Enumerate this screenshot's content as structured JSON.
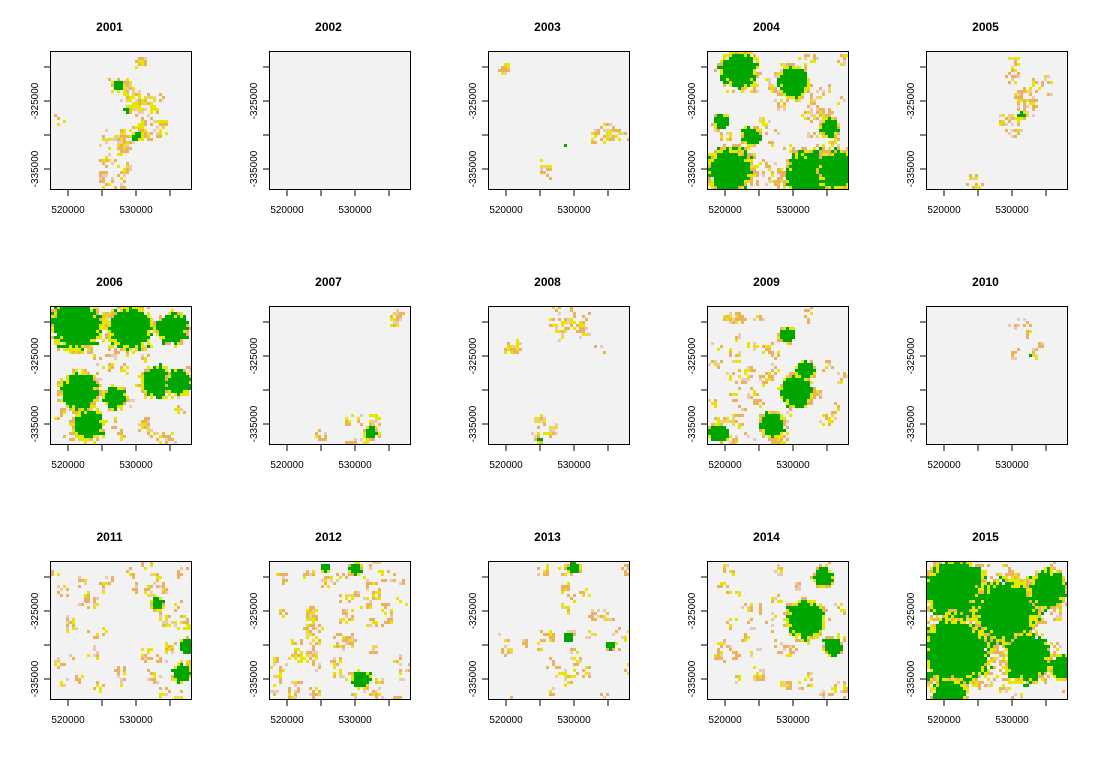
{
  "chart_data": [
    {
      "type": "heatmap",
      "title": "2001",
      "xticks": [
        "520000",
        "530000"
      ],
      "yticks": [
        "-325000",
        "-335000"
      ],
      "patches": [
        {
          "x": 0.48,
          "y": 0.24,
          "r": 0.035,
          "fill": "g"
        },
        {
          "x": 0.6,
          "y": 0.6,
          "r": 0.03,
          "fill": "g"
        },
        {
          "x": 0.53,
          "y": 0.42,
          "r": 0.02,
          "fill": "g"
        }
      ],
      "scatter": [
        [
          0.42,
          0.2,
          0.6,
          0.33,
          14
        ],
        [
          0.55,
          0.3,
          0.8,
          0.6,
          22
        ],
        [
          0.35,
          0.6,
          0.55,
          0.95,
          20
        ],
        [
          0.62,
          0.05,
          0.68,
          0.1,
          2
        ],
        [
          0.05,
          0.45,
          0.07,
          0.48,
          1
        ]
      ]
    },
    {
      "type": "heatmap",
      "title": "2002",
      "xticks": [
        "520000",
        "530000"
      ],
      "yticks": [
        "-325000",
        "-335000"
      ],
      "patches": [],
      "scatter": []
    },
    {
      "type": "heatmap",
      "title": "2003",
      "xticks": [
        "520000",
        "530000"
      ],
      "yticks": [
        "-325000",
        "-335000"
      ],
      "patches": [
        {
          "x": 0.53,
          "y": 0.66,
          "r": 0.015,
          "fill": "g"
        }
      ],
      "scatter": [
        [
          0.1,
          0.1,
          0.13,
          0.13,
          2
        ],
        [
          0.75,
          0.55,
          0.95,
          0.62,
          8
        ],
        [
          0.38,
          0.8,
          0.42,
          0.95,
          3
        ]
      ]
    },
    {
      "type": "heatmap",
      "title": "2004",
      "xticks": [
        "520000",
        "530000"
      ],
      "yticks": [
        "-325000",
        "-335000"
      ],
      "patches": [
        {
          "x": 0.22,
          "y": 0.12,
          "r": 0.12,
          "fill": "g"
        },
        {
          "x": 0.6,
          "y": 0.22,
          "r": 0.1,
          "fill": "g"
        },
        {
          "x": 0.15,
          "y": 0.85,
          "r": 0.14,
          "fill": "g"
        },
        {
          "x": 0.72,
          "y": 0.88,
          "r": 0.16,
          "fill": "g"
        },
        {
          "x": 0.92,
          "y": 0.85,
          "r": 0.12,
          "fill": "g"
        },
        {
          "x": 0.85,
          "y": 0.55,
          "r": 0.06,
          "fill": "g"
        },
        {
          "x": 0.3,
          "y": 0.6,
          "r": 0.06,
          "fill": "g"
        },
        {
          "x": 0.1,
          "y": 0.5,
          "r": 0.05,
          "fill": "g"
        }
      ],
      "scatter": [
        [
          0.0,
          0.0,
          1.0,
          1.0,
          60
        ]
      ]
    },
    {
      "type": "heatmap",
      "title": "2005",
      "xticks": [
        "520000",
        "530000"
      ],
      "yticks": [
        "-325000",
        "-335000"
      ],
      "patches": [
        {
          "x": 0.66,
          "y": 0.45,
          "r": 0.025,
          "fill": "g"
        }
      ],
      "scatter": [
        [
          0.5,
          0.15,
          0.9,
          0.6,
          16
        ],
        [
          0.3,
          0.9,
          0.4,
          1.0,
          5
        ],
        [
          0.55,
          0.05,
          0.62,
          0.2,
          3
        ]
      ]
    },
    {
      "type": "heatmap",
      "title": "2006",
      "xticks": [
        "520000",
        "530000"
      ],
      "yticks": [
        "-325000",
        "-335000"
      ],
      "patches": [
        {
          "x": 0.18,
          "y": 0.12,
          "r": 0.16,
          "fill": "g"
        },
        {
          "x": 0.55,
          "y": 0.15,
          "r": 0.14,
          "fill": "g"
        },
        {
          "x": 0.85,
          "y": 0.15,
          "r": 0.1,
          "fill": "g"
        },
        {
          "x": 0.2,
          "y": 0.6,
          "r": 0.12,
          "fill": "g"
        },
        {
          "x": 0.25,
          "y": 0.85,
          "r": 0.1,
          "fill": "g"
        },
        {
          "x": 0.75,
          "y": 0.55,
          "r": 0.1,
          "fill": "g"
        },
        {
          "x": 0.9,
          "y": 0.55,
          "r": 0.08,
          "fill": "g"
        },
        {
          "x": 0.45,
          "y": 0.65,
          "r": 0.07,
          "fill": "g"
        }
      ],
      "scatter": [
        [
          0.0,
          0.0,
          1.0,
          1.0,
          45
        ]
      ]
    },
    {
      "type": "heatmap",
      "title": "2007",
      "xticks": [
        "520000",
        "530000"
      ],
      "yticks": [
        "-325000",
        "-335000"
      ],
      "patches": [
        {
          "x": 0.7,
          "y": 0.9,
          "r": 0.04,
          "fill": "g"
        }
      ],
      "scatter": [
        [
          0.55,
          0.8,
          0.8,
          1.0,
          10
        ],
        [
          0.82,
          0.05,
          0.92,
          0.15,
          3
        ],
        [
          0.35,
          0.88,
          0.4,
          0.95,
          2
        ]
      ]
    },
    {
      "type": "heatmap",
      "title": "2008",
      "xticks": [
        "520000",
        "530000"
      ],
      "yticks": [
        "-325000",
        "-335000"
      ],
      "patches": [
        {
          "x": 0.35,
          "y": 0.95,
          "r": 0.02,
          "fill": "g"
        }
      ],
      "scatter": [
        [
          0.45,
          0.0,
          0.7,
          0.2,
          10
        ],
        [
          0.15,
          0.25,
          0.2,
          0.3,
          3
        ],
        [
          0.33,
          0.8,
          0.45,
          1.0,
          6
        ],
        [
          0.75,
          0.3,
          0.78,
          0.35,
          1
        ]
      ]
    },
    {
      "type": "heatmap",
      "title": "2009",
      "xticks": [
        "520000",
        "530000"
      ],
      "yticks": [
        "-325000",
        "-335000"
      ],
      "patches": [
        {
          "x": 0.62,
          "y": 0.6,
          "r": 0.1,
          "fill": "g"
        },
        {
          "x": 0.45,
          "y": 0.85,
          "r": 0.08,
          "fill": "g"
        },
        {
          "x": 0.08,
          "y": 0.9,
          "r": 0.06,
          "fill": "g"
        },
        {
          "x": 0.55,
          "y": 0.2,
          "r": 0.05,
          "fill": "g"
        },
        {
          "x": 0.68,
          "y": 0.45,
          "r": 0.06,
          "fill": "g"
        }
      ],
      "scatter": [
        [
          0.0,
          0.0,
          1.0,
          1.0,
          50
        ]
      ]
    },
    {
      "type": "heatmap",
      "title": "2010",
      "xticks": [
        "520000",
        "530000"
      ],
      "yticks": [
        "-325000",
        "-335000"
      ],
      "patches": [
        {
          "x": 0.72,
          "y": 0.35,
          "r": 0.015,
          "fill": "g"
        }
      ],
      "scatter": [
        [
          0.6,
          0.0,
          0.8,
          0.4,
          8
        ]
      ]
    },
    {
      "type": "heatmap",
      "title": "2011",
      "xticks": [
        "520000",
        "530000"
      ],
      "yticks": [
        "-325000",
        "-335000"
      ],
      "patches": [
        {
          "x": 0.95,
          "y": 0.6,
          "r": 0.05,
          "fill": "g"
        },
        {
          "x": 0.92,
          "y": 0.8,
          "r": 0.06,
          "fill": "g"
        },
        {
          "x": 0.75,
          "y": 0.3,
          "r": 0.04,
          "fill": "g"
        }
      ],
      "scatter": [
        [
          0.0,
          0.0,
          1.0,
          1.0,
          45
        ]
      ]
    },
    {
      "type": "heatmap",
      "title": "2012",
      "xticks": [
        "520000",
        "530000"
      ],
      "yticks": [
        "-325000",
        "-335000"
      ],
      "patches": [
        {
          "x": 0.65,
          "y": 0.85,
          "r": 0.06,
          "fill": "g"
        },
        {
          "x": 0.6,
          "y": 0.05,
          "r": 0.04,
          "fill": "g"
        },
        {
          "x": 0.38,
          "y": 0.05,
          "r": 0.03,
          "fill": "g"
        }
      ],
      "scatter": [
        [
          0.0,
          0.0,
          1.0,
          1.0,
          70
        ]
      ]
    },
    {
      "type": "heatmap",
      "title": "2013",
      "xticks": [
        "520000",
        "530000"
      ],
      "yticks": [
        "-325000",
        "-335000"
      ],
      "patches": [
        {
          "x": 0.6,
          "y": 0.05,
          "r": 0.04,
          "fill": "g"
        },
        {
          "x": 0.55,
          "y": 0.55,
          "r": 0.03,
          "fill": "g"
        },
        {
          "x": 0.85,
          "y": 0.6,
          "r": 0.025,
          "fill": "g"
        }
      ],
      "scatter": [
        [
          0.0,
          0.0,
          1.0,
          1.0,
          35
        ]
      ]
    },
    {
      "type": "heatmap",
      "title": "2014",
      "xticks": [
        "520000",
        "530000"
      ],
      "yticks": [
        "-325000",
        "-335000"
      ],
      "patches": [
        {
          "x": 0.68,
          "y": 0.42,
          "r": 0.12,
          "fill": "g"
        },
        {
          "x": 0.8,
          "y": 0.1,
          "r": 0.06,
          "fill": "g"
        },
        {
          "x": 0.88,
          "y": 0.6,
          "r": 0.06,
          "fill": "g"
        }
      ],
      "scatter": [
        [
          0.0,
          0.0,
          1.0,
          1.0,
          40
        ]
      ]
    },
    {
      "type": "heatmap",
      "title": "2015",
      "xticks": [
        "520000",
        "530000"
      ],
      "yticks": [
        "-325000",
        "-335000"
      ],
      "patches": [
        {
          "x": 0.2,
          "y": 0.2,
          "r": 0.2,
          "fill": "g"
        },
        {
          "x": 0.2,
          "y": 0.65,
          "r": 0.22,
          "fill": "g"
        },
        {
          "x": 0.55,
          "y": 0.35,
          "r": 0.2,
          "fill": "g"
        },
        {
          "x": 0.85,
          "y": 0.2,
          "r": 0.12,
          "fill": "g"
        },
        {
          "x": 0.7,
          "y": 0.7,
          "r": 0.15,
          "fill": "g"
        },
        {
          "x": 0.95,
          "y": 0.75,
          "r": 0.08,
          "fill": "g"
        },
        {
          "x": 0.15,
          "y": 0.95,
          "r": 0.1,
          "fill": "g"
        }
      ],
      "scatter": [
        [
          0.0,
          0.0,
          1.0,
          1.0,
          45
        ]
      ]
    }
  ],
  "colors": {
    "background": "#f2f2f2",
    "green": "#00a600",
    "yellow": "#e6e600",
    "tan": "#ebb25e",
    "pink": "#eec9b0",
    "frame": "#000000"
  }
}
